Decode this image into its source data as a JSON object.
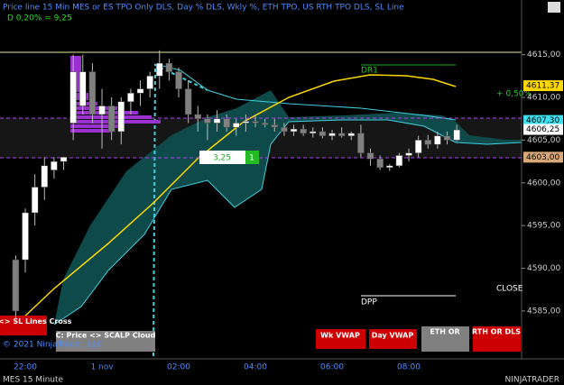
{
  "header": {
    "title": "Price line 15 Min MES or ES TPO Only  DLS, Day % DLS, Wkly %, ETH TPO, US RTH TPO DLS, SL Line",
    "subtitle": "D 0,20% = 9,25"
  },
  "chart_data": {
    "type": "candlestick",
    "categories": [
      null,
      "22:00",
      null,
      null,
      null,
      null,
      null,
      null,
      null,
      "1 nov",
      null,
      null,
      null,
      null,
      null,
      null,
      null,
      "02:00",
      null,
      null,
      null,
      null,
      null,
      null,
      null,
      "04:00",
      null,
      null,
      null,
      null,
      null,
      null,
      null,
      "06:00",
      null,
      null,
      null,
      null,
      null,
      null,
      null,
      "08:00",
      null,
      null,
      null,
      null,
      null
    ],
    "open": [
      4591,
      4591,
      4596.5,
      4599.5,
      4601.5,
      4602.5,
      4607,
      4609,
      4613,
      4608,
      4609,
      4606,
      4609.5,
      4610.5,
      4611,
      4612.5,
      4614,
      4613,
      4611,
      4608,
      4607.5,
      4607,
      4607.5,
      4606.5,
      4607,
      4607.2,
      4607,
      4606.8,
      4606.5,
      4606,
      4606.3,
      4605.8,
      4606,
      4605.5,
      4605.8,
      4605.5,
      4605.8,
      4603.5,
      4602.8,
      4601.8,
      4602,
      4603.2,
      4603.5,
      4605,
      4604.5,
      4605.5,
      4605
    ],
    "high": [
      4591.5,
      4597,
      4601,
      4603,
      4603,
      4603,
      4615,
      4615,
      4614,
      4611,
      4610,
      4610,
      4611,
      4612,
      4613,
      4615.5,
      4614.5,
      4613.5,
      4612,
      4609,
      4608,
      4608.5,
      4608,
      4607.5,
      4608,
      4608,
      4607.5,
      4607.5,
      4607,
      4606.8,
      4606.8,
      4606.5,
      4606.5,
      4606.2,
      4606.5,
      4606,
      4606.8,
      4604,
      4603.2,
      4602.2,
      4603.5,
      4604,
      4605.5,
      4605.6,
      4606,
      4606,
      4606.8
    ],
    "low": [
      4584,
      4589.5,
      4595,
      4598,
      4600.5,
      4601.5,
      4605,
      4608,
      4607,
      4604,
      4605,
      4604.5,
      4608,
      4609,
      4610,
      4611,
      4612,
      4610,
      4607,
      4606,
      4605,
      4606,
      4606,
      4605.5,
      4606,
      4606.5,
      4606.5,
      4606,
      4605.5,
      4605.5,
      4605.5,
      4605.3,
      4605.2,
      4605,
      4605.3,
      4605,
      4603,
      4602,
      4601.5,
      4601.4,
      4601.8,
      4602.5,
      4603,
      4604,
      4604,
      4604.5,
      4604.8
    ],
    "close": [
      4585,
      4596.5,
      4599.5,
      4602,
      4602.5,
      4603,
      4613,
      4613,
      4608,
      4609,
      4606,
      4609.5,
      4610.5,
      4611,
      4612.5,
      4614,
      4613,
      4611,
      4608,
      4607.5,
      4607,
      4607.5,
      4606.5,
      4607,
      4607.2,
      4607,
      4606.8,
      4606.5,
      4606,
      4606.3,
      4605.8,
      4606,
      4605.5,
      4605.8,
      4605.5,
      4605.8,
      4603.5,
      4602.8,
      4601.8,
      4602,
      4603.2,
      4603.5,
      4605,
      4604.5,
      4605.5,
      4605,
      4606.2
    ],
    "up_color": "#ffffff",
    "down_color": "#808080",
    "ylim": [
      4579.4,
      4621.4
    ],
    "yticks": [
      {
        "value": 4585,
        "label": "4585,00"
      },
      {
        "value": 4590,
        "label": "4590,00"
      },
      {
        "value": 4595,
        "label": "4595,00"
      },
      {
        "value": 4600,
        "label": "4600,00"
      },
      {
        "value": 4605,
        "label": "4605,00"
      },
      {
        "value": 4610,
        "label": "4610,00"
      },
      {
        "value": 4615,
        "label": "4615,00"
      }
    ],
    "price_labels": [
      {
        "value": 4611.37,
        "label": "4611,37",
        "color": "#ffd700"
      },
      {
        "value": 4607.3,
        "label": "4607,30",
        "color": "#40e0f0"
      },
      {
        "value": 4606.25,
        "label": "4606,25",
        "color": "#ffffff"
      },
      {
        "value": 4603,
        "label": "4603,00",
        "color": "#d9a878"
      }
    ],
    "annotations": {
      "pct": "+ 0,50%",
      "dr1": "DR1",
      "dpp": "DPP",
      "close": "CLOSE",
      "box_value": "3,25",
      "box_count": "1"
    }
  },
  "buttons": [
    "Price <> SL Lines Cross",
    "C: Price <> SCALP Cloud",
    "Wk VWAP",
    "Day VWAP",
    "ETH OR",
    "RTH OR DLS"
  ],
  "footer": {
    "copyright": "© 2021 NinjaTrader, LLC",
    "instrument": "MES 15 Minute",
    "logo": "NINJATRADER"
  }
}
